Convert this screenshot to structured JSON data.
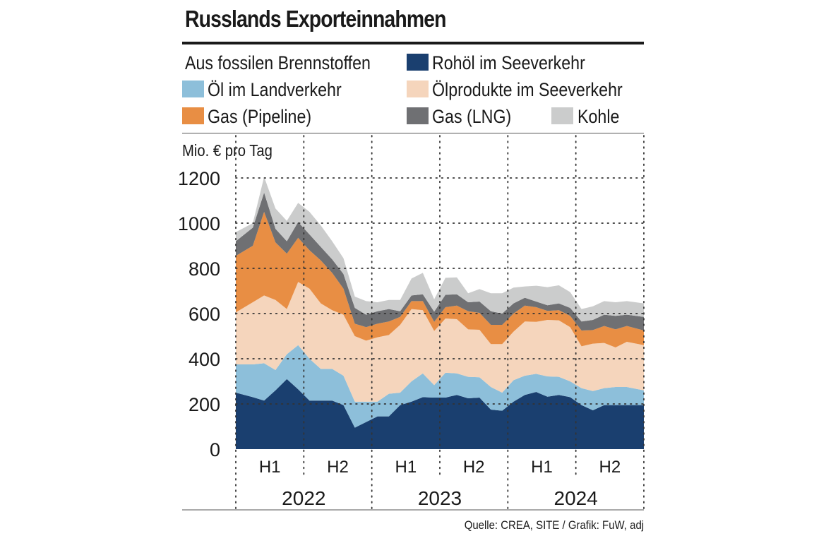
{
  "header": {
    "title": "Russlands Exporteinnahmen",
    "legend_subtitle": "Aus fossilen Brennstoffen",
    "unit": "Mio. € pro Tag",
    "source": "Quelle: CREA, SITE / Grafik: FuW, adj"
  },
  "legend": [
    {
      "key": "crude_sea",
      "label": "Rohöl im Seeverkehr",
      "color": "#1a3f6f"
    },
    {
      "key": "oil_land",
      "label": "Öl im Landverkehr",
      "color": "#8dbfda"
    },
    {
      "key": "products_sea",
      "label": "Ölprodukte im Seeverkehr",
      "color": "#f5d5bc"
    },
    {
      "key": "gas_pipeline",
      "label": "Gas (Pipeline)",
      "color": "#e88e44"
    },
    {
      "key": "gas_lng",
      "label": "Gas (LNG)",
      "color": "#6f7073"
    },
    {
      "key": "coal",
      "label": "Kohle",
      "color": "#cbcccc"
    }
  ],
  "chart_data": {
    "type": "area",
    "stacked": true,
    "title": "Russlands Exporteinnahmen",
    "ylabel": "Mio. € pro Tag",
    "ylim": [
      0,
      1200
    ],
    "yticks": [
      "0",
      "200",
      "400",
      "600",
      "800",
      "1000",
      "1200"
    ],
    "xlim": [
      0,
      36
    ],
    "x": [
      0,
      1.5,
      2.5,
      3.5,
      4.5,
      5.5,
      6.5,
      7.5,
      8.5,
      9.5,
      10.5,
      11.5,
      12.5,
      13.5,
      14.5,
      15.5,
      16.5,
      17.5,
      18.5,
      19.5,
      20.5,
      21.5,
      22.5,
      23.5,
      24.5,
      25.5,
      26.5,
      27.5,
      28.5,
      29.5,
      30.5,
      31.5,
      32.5,
      33.5,
      34.5,
      36
    ],
    "x_axis": {
      "halves": [
        {
          "label": "H1",
          "x": 3
        },
        {
          "label": "H2",
          "x": 9
        },
        {
          "label": "H1",
          "x": 15
        },
        {
          "label": "H2",
          "x": 21
        },
        {
          "label": "H1",
          "x": 27
        },
        {
          "label": "H2",
          "x": 33
        }
      ],
      "years": [
        {
          "label": "2022",
          "x": 6
        },
        {
          "label": "2023",
          "x": 18
        },
        {
          "label": "2024",
          "x": 30
        }
      ],
      "year_boundaries": [
        0,
        12,
        24,
        36
      ],
      "half_boundaries": [
        6,
        18,
        30
      ]
    },
    "series": [
      {
        "name": "Rohöl im Seeverkehr",
        "key": "crude_sea",
        "values": [
          250,
          230,
          215,
          260,
          310,
          265,
          215,
          215,
          215,
          195,
          95,
          120,
          145,
          145,
          195,
          210,
          230,
          228,
          228,
          240,
          225,
          228,
          175,
          170,
          210,
          240,
          253,
          232,
          240,
          230,
          195,
          172,
          195,
          195,
          195,
          195
        ]
      },
      {
        "name": "Öl im Landverkehr",
        "key": "oil_land",
        "values": [
          125,
          145,
          165,
          90,
          110,
          195,
          185,
          140,
          140,
          130,
          115,
          90,
          65,
          100,
          55,
          90,
          105,
          55,
          110,
          95,
          95,
          90,
          100,
          80,
          95,
          85,
          80,
          90,
          80,
          70,
          75,
          85,
          75,
          80,
          80,
          65
        ]
      },
      {
        "name": "Ölprodukte im Seeverkehr",
        "key": "products_sea",
        "values": [
          230,
          275,
          300,
          310,
          200,
          280,
          310,
          290,
          260,
          270,
          290,
          270,
          285,
          260,
          300,
          320,
          280,
          240,
          240,
          240,
          210,
          210,
          190,
          215,
          215,
          240,
          230,
          250,
          250,
          240,
          185,
          210,
          200,
          175,
          200,
          200
        ]
      },
      {
        "name": "Gas (Pipeline)",
        "key": "gas_pipeline",
        "values": [
          250,
          250,
          370,
          255,
          245,
          195,
          170,
          190,
          165,
          115,
          55,
          60,
          60,
          60,
          35,
          35,
          40,
          40,
          50,
          60,
          80,
          75,
          85,
          85,
          80,
          70,
          65,
          40,
          45,
          50,
          70,
          60,
          75,
          80,
          70,
          65
        ]
      },
      {
        "name": "Gas (LNG)",
        "key": "gas_lng",
        "values": [
          65,
          80,
          85,
          60,
          55,
          70,
          70,
          60,
          60,
          65,
          70,
          55,
          55,
          55,
          25,
          25,
          30,
          45,
          55,
          50,
          40,
          50,
          60,
          50,
          45,
          35,
          25,
          25,
          30,
          35,
          40,
          45,
          50,
          60,
          50,
          60
        ]
      },
      {
        "name": "Kohle",
        "key": "coal",
        "values": [
          40,
          20,
          70,
          90,
          90,
          85,
          100,
          95,
          80,
          70,
          50,
          60,
          40,
          40,
          50,
          75,
          95,
          55,
          75,
          75,
          40,
          55,
          80,
          90,
          70,
          50,
          70,
          80,
          80,
          70,
          55,
          60,
          60,
          60,
          60,
          60
        ]
      }
    ]
  }
}
